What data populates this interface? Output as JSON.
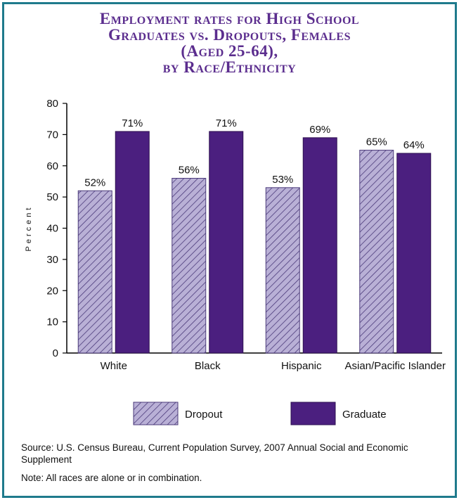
{
  "title_lines": [
    "Employment rates for High School",
    "Graduates vs. Dropouts, Females",
    "(Aged 25-64),",
    "by Race/Ethnicity"
  ],
  "source": "Source: U.S. Census Bureau, Current Population Survey, 2007 Annual Social and Economic Supplement",
  "note": "Note: All races are alone or in combination.",
  "colors": {
    "frame": "#1f7a8c",
    "title": "#5b2d8e",
    "graduate": "#4b1f7f",
    "dropout_fill": "#b9b0d6",
    "dropout_hatch": "#4b3a7a"
  },
  "chart_data": {
    "type": "bar",
    "title": "Employment rates for High School Graduates vs. Dropouts, Females (Aged 25-64), by Race/Ethnicity",
    "xlabel": "",
    "ylabel": "Percent",
    "ylim": [
      0,
      80
    ],
    "yticks": [
      0,
      10,
      20,
      30,
      40,
      50,
      60,
      70,
      80
    ],
    "grid": false,
    "legend_position": "bottom",
    "categories": [
      "White",
      "Black",
      "Hispanic",
      "Asian/Pacific Islander"
    ],
    "series": [
      {
        "name": "Dropout",
        "values": [
          52,
          56,
          53,
          65
        ],
        "labels": [
          "52%",
          "56%",
          "53%",
          "65%"
        ]
      },
      {
        "name": "Graduate",
        "values": [
          71,
          71,
          69,
          64
        ],
        "labels": [
          "71%",
          "71%",
          "69%",
          "64%"
        ]
      }
    ]
  }
}
